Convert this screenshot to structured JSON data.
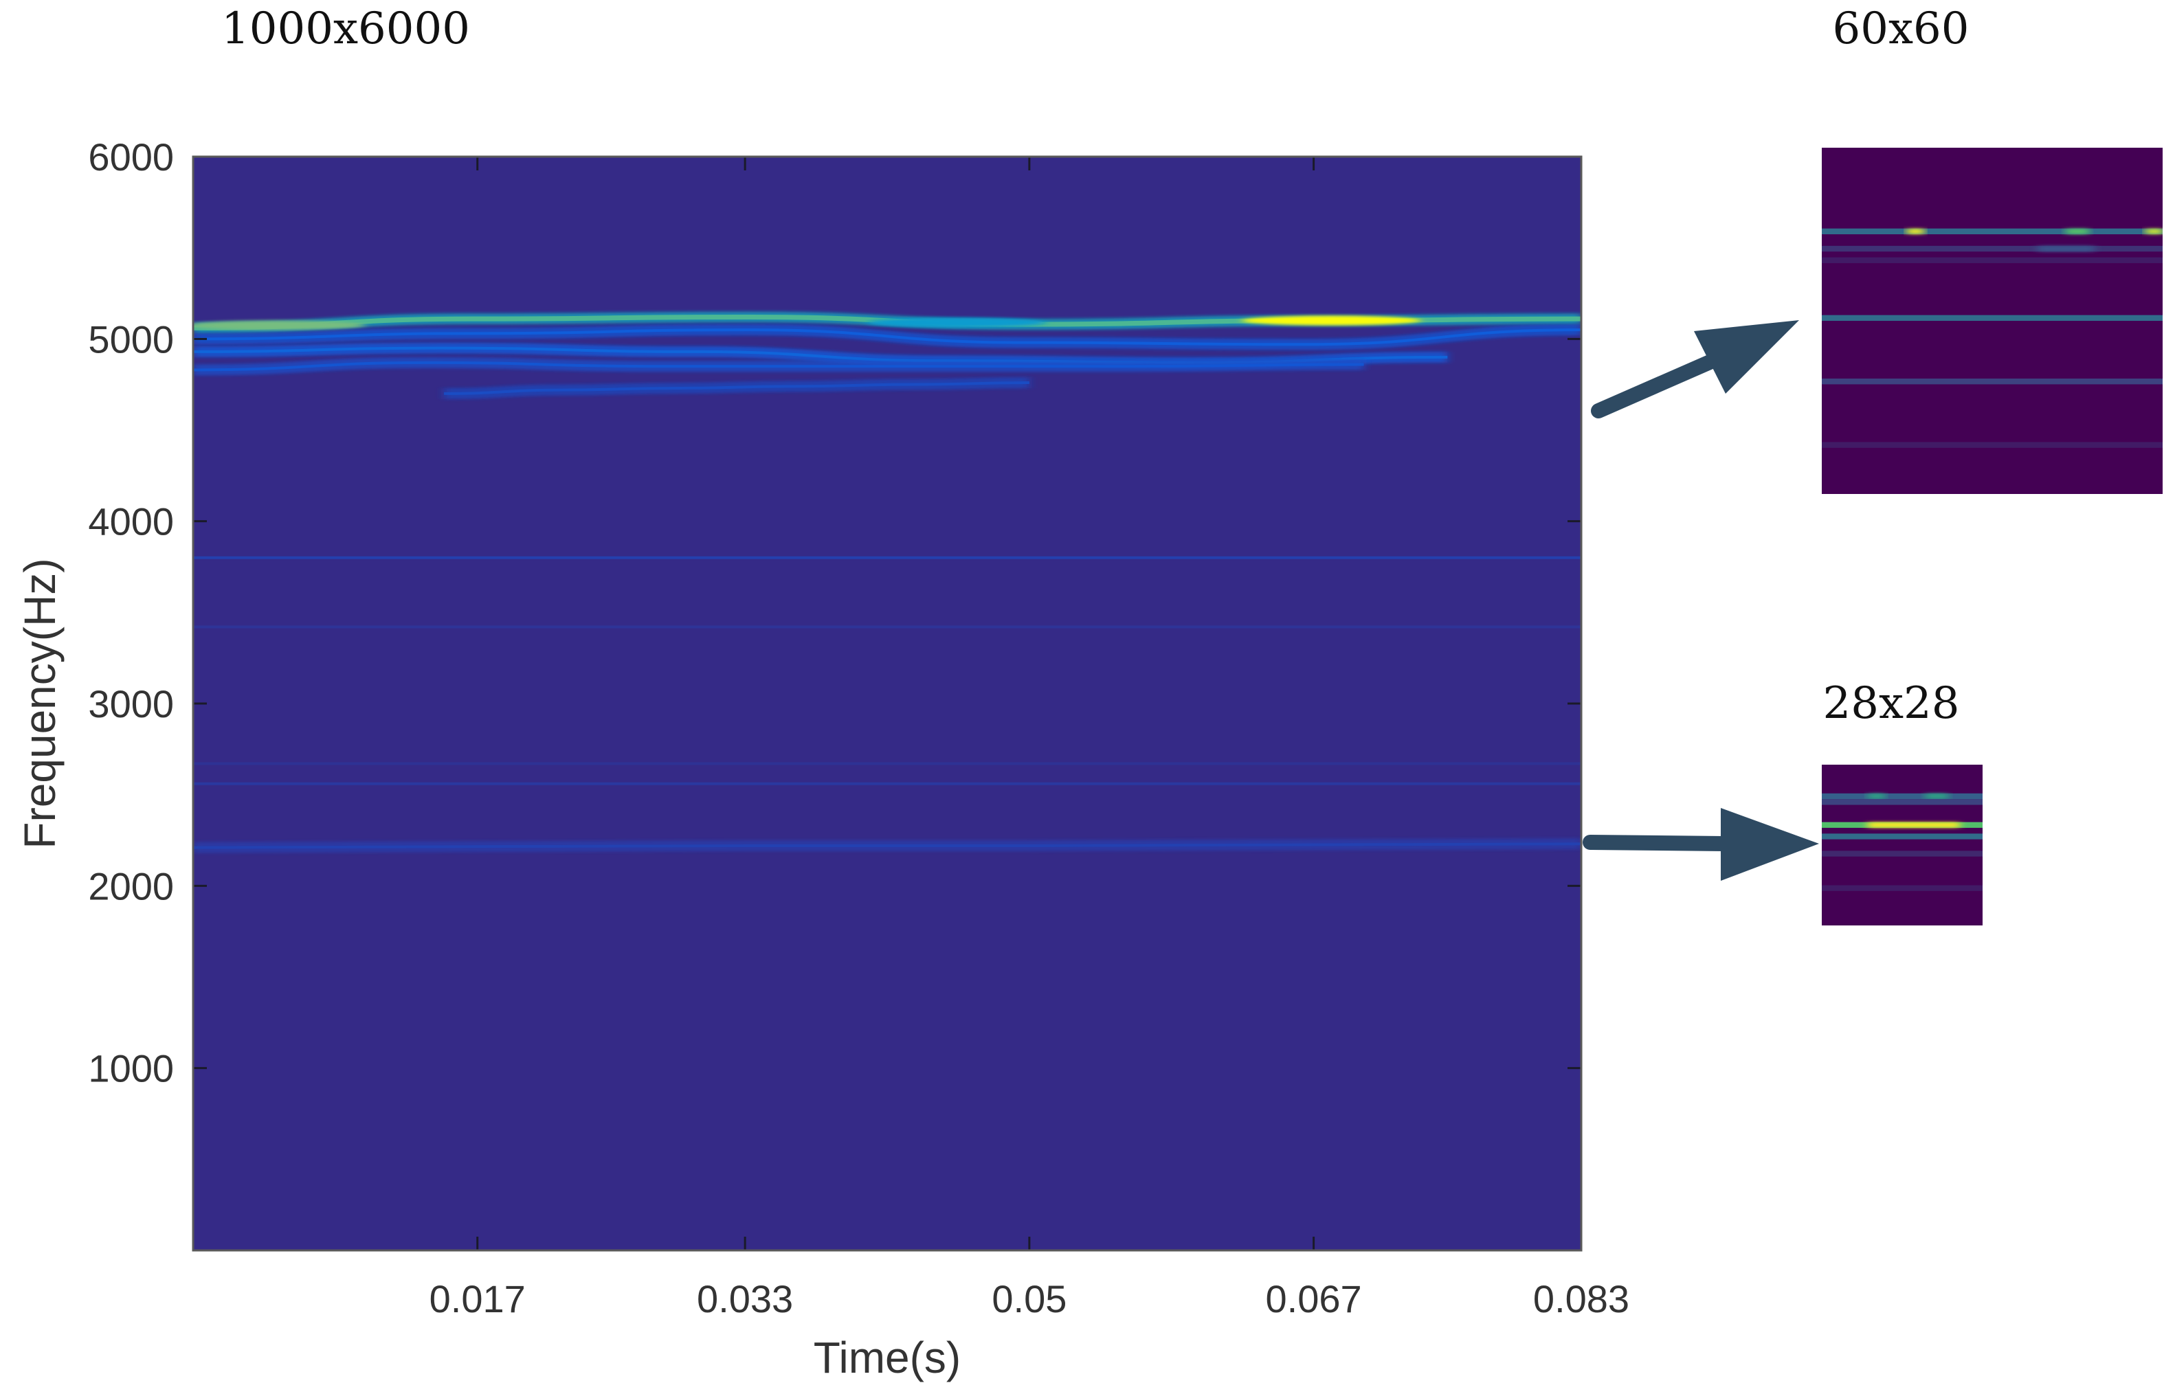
{
  "labels": {
    "main_size": "1000x6000",
    "large_size": "60x60",
    "small_size": "28x28"
  },
  "colors": {
    "background": "#352A87",
    "inset_background": "#440154",
    "arrow": "#2E4A62",
    "colormap_low": "#352A87",
    "colormap_high": "#F9FB0E"
  },
  "chart_data": [
    {
      "type": "heatmap",
      "title": "",
      "xlabel": "Time(s)",
      "ylabel": "Frequency(Hz)",
      "xlim": [
        0,
        0.083
      ],
      "ylim": [
        0,
        6000
      ],
      "xticks": [
        0.017,
        0.033,
        0.05,
        0.067,
        0.083
      ],
      "xtick_labels": [
        "0.017",
        "0.033",
        "0.05",
        "0.067",
        "0.083"
      ],
      "yticks": [
        1000,
        2000,
        3000,
        4000,
        5000,
        6000
      ],
      "ytick_labels": [
        "1000",
        "2000",
        "3000",
        "4000",
        "5000",
        "6000"
      ],
      "grid": false,
      "ridges": [
        {
          "t_start": 0.0,
          "t_end": 0.083,
          "f": [
            5060,
            5110,
            5120,
            5080,
            5100,
            5110
          ],
          "peak": 0.9
        },
        {
          "t_start": 0.0,
          "t_end": 0.083,
          "f": [
            5000,
            5030,
            5050,
            4980,
            4970,
            5050
          ],
          "peak": 0.3
        },
        {
          "t_start": 0.0,
          "t_end": 0.075,
          "f": [
            4930,
            4950,
            4930,
            4880,
            4870,
            4900
          ],
          "peak": 0.35
        },
        {
          "t_start": 0.0,
          "t_end": 0.07,
          "f": [
            4830,
            4870,
            4850,
            4850,
            4850,
            4860
          ],
          "peak": 0.25
        },
        {
          "t_start": 0.015,
          "t_end": 0.05,
          "f": [
            4700,
            4720,
            4730,
            4740,
            4750,
            4760
          ],
          "peak": 0.2
        },
        {
          "t_start": 0.0,
          "t_end": 0.083,
          "f": [
            3800,
            3800,
            3800,
            3800,
            3800,
            3800
          ],
          "peak": 0.14
        },
        {
          "t_start": 0.0,
          "t_end": 0.083,
          "f": [
            3420,
            3420,
            3420,
            3420,
            3420,
            3420
          ],
          "peak": 0.06
        },
        {
          "t_start": 0.0,
          "t_end": 0.083,
          "f": [
            2670,
            2670,
            2670,
            2670,
            2670,
            2670
          ],
          "peak": 0.05
        },
        {
          "t_start": 0.0,
          "t_end": 0.083,
          "f": [
            2560,
            2560,
            2560,
            2560,
            2560,
            2560
          ],
          "peak": 0.09
        },
        {
          "t_start": 0.0,
          "t_end": 0.083,
          "f": [
            2210,
            2215,
            2220,
            2220,
            2225,
            2230
          ],
          "peak": 0.14
        }
      ]
    },
    {
      "type": "heatmap",
      "title": "60x60",
      "size": [
        60,
        60
      ],
      "colormap": "viridis",
      "rows": [
        {
          "row": 14,
          "spans": [
            {
              "x0": 0,
              "x1": 60,
              "peak": 0.35
            },
            {
              "x0": 15,
              "x1": 18,
              "peak": 0.95
            },
            {
              "x0": 43,
              "x1": 47,
              "peak": 0.7
            },
            {
              "x0": 57,
              "x1": 60,
              "peak": 0.9
            }
          ]
        },
        {
          "row": 17,
          "spans": [
            {
              "x0": 0,
              "x1": 60,
              "peak": 0.15
            },
            {
              "x0": 38,
              "x1": 48,
              "peak": 0.25
            }
          ]
        },
        {
          "row": 19,
          "spans": [
            {
              "x0": 0,
              "x1": 60,
              "peak": 0.08
            }
          ]
        },
        {
          "row": 29,
          "spans": [
            {
              "x0": 0,
              "x1": 60,
              "peak": 0.35
            }
          ]
        },
        {
          "row": 40,
          "spans": [
            {
              "x0": 0,
              "x1": 60,
              "peak": 0.2
            }
          ]
        },
        {
          "row": 51,
          "spans": [
            {
              "x0": 0,
              "x1": 60,
              "peak": 0.08
            }
          ]
        }
      ]
    },
    {
      "type": "heatmap",
      "title": "28x28",
      "size": [
        28,
        28
      ],
      "colormap": "viridis",
      "rows": [
        {
          "row": 5,
          "spans": [
            {
              "x0": 0,
              "x1": 28,
              "peak": 0.3
            },
            {
              "x0": 8,
              "x1": 11,
              "peak": 0.55
            },
            {
              "x0": 18,
              "x1": 22,
              "peak": 0.55
            }
          ]
        },
        {
          "row": 6,
          "spans": [
            {
              "x0": 0,
              "x1": 28,
              "peak": 0.2
            }
          ]
        },
        {
          "row": 10,
          "spans": [
            {
              "x0": 0,
              "x1": 28,
              "peak": 0.7
            },
            {
              "x0": 8,
              "x1": 24,
              "peak": 0.98
            }
          ]
        },
        {
          "row": 12,
          "spans": [
            {
              "x0": 0,
              "x1": 28,
              "peak": 0.35
            }
          ]
        },
        {
          "row": 15,
          "spans": [
            {
              "x0": 0,
              "x1": 28,
              "peak": 0.12
            }
          ]
        },
        {
          "row": 21,
          "spans": [
            {
              "x0": 0,
              "x1": 28,
              "peak": 0.08
            }
          ]
        }
      ]
    }
  ]
}
